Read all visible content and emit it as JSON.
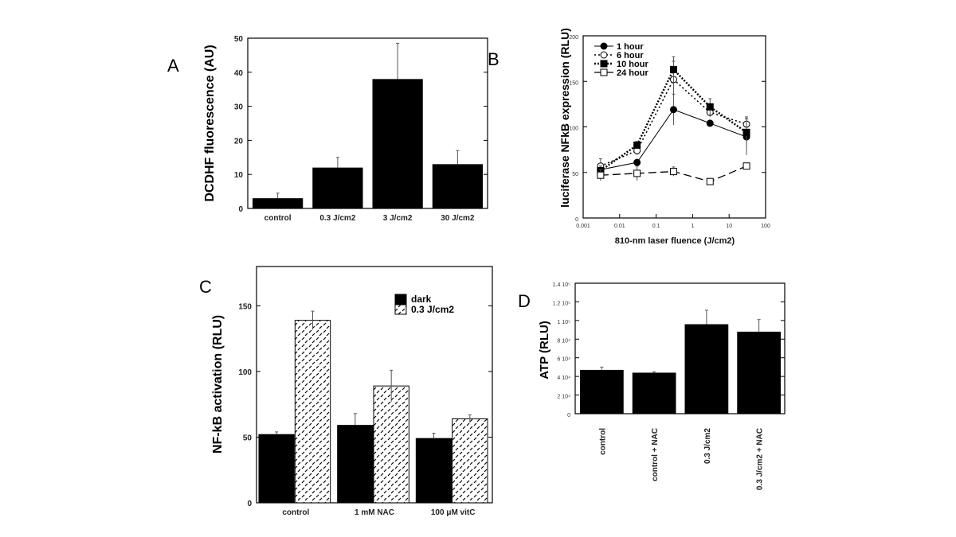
{
  "chart_data": [
    {
      "panel": "A",
      "type": "bar",
      "ylabel": "DCDHF fluorescence (AU)",
      "ylim": [
        0,
        50
      ],
      "yticks": [
        0,
        10,
        20,
        30,
        40,
        50
      ],
      "categories": [
        "control",
        "0.3 J/cm2",
        "3 J/cm2",
        "30 J/cm2"
      ],
      "values": [
        3,
        12,
        38,
        13
      ],
      "errors": [
        1.5,
        3,
        10.5,
        4
      ],
      "bar_color": "#000000"
    },
    {
      "panel": "B",
      "type": "line",
      "xscale": "log",
      "xlabel": "810-nm laser fluence (J/cm2)",
      "ylabel": "luciferase NFkB expression (RLU)",
      "xlim": [
        0.001,
        100
      ],
      "ylim": [
        0,
        200
      ],
      "xticks": [
        "0.001",
        "0.01",
        "0.1",
        "1",
        "10",
        "100"
      ],
      "yticks": [
        0,
        50,
        100,
        150,
        200
      ],
      "legend_position": "top-left",
      "x": [
        0.003,
        0.03,
        0.3,
        3,
        30
      ],
      "series": [
        {
          "name": "1 hour",
          "values": [
            53,
            61,
            119,
            104,
            89
          ],
          "errors": [
            5,
            3,
            17,
            2,
            20
          ],
          "marker": "filled-circle",
          "line": "solid"
        },
        {
          "name": "6 hour",
          "values": [
            57,
            74,
            152,
            116,
            103
          ],
          "errors": [
            8,
            5,
            20,
            5,
            8
          ],
          "marker": "open-circle",
          "line": "dotted"
        },
        {
          "name": "10 hour",
          "values": [
            52,
            80,
            163,
            122,
            94
          ],
          "errors": [
            5,
            4,
            14,
            9,
            15
          ],
          "marker": "filled-square",
          "line": "dotted-heavy"
        },
        {
          "name": "24 hour",
          "values": [
            47,
            49,
            51,
            40,
            57
          ],
          "errors": [
            6,
            8,
            5,
            2,
            2
          ],
          "marker": "open-square",
          "line": "dashed"
        }
      ]
    },
    {
      "panel": "C",
      "type": "bar",
      "ylabel": "NF-kB activation (RLU)",
      "ylim": [
        0,
        180
      ],
      "yticks": [
        0,
        50,
        100,
        150
      ],
      "legend_position": "top-right",
      "categories": [
        "control",
        "1 mM NAC",
        "100 μM vitC"
      ],
      "series": [
        {
          "name": "dark",
          "values": [
            52,
            59,
            49
          ],
          "errors": [
            2,
            9,
            4
          ],
          "fill": "solid-black"
        },
        {
          "name": "0.3 J/cm2",
          "values": [
            139,
            89,
            64
          ],
          "errors": [
            7,
            12,
            3
          ],
          "fill": "hatched"
        }
      ]
    },
    {
      "panel": "D",
      "type": "bar",
      "ylabel": "ATP (RLU)",
      "ylim": [
        0,
        140000
      ],
      "yticks": [
        0,
        20000,
        40000,
        60000,
        80000,
        100000,
        120000,
        140000
      ],
      "ytick_labels": [
        "0",
        "2 10⁴",
        "4 10⁴",
        "6 10⁴",
        "8 10⁴",
        "1 10⁵",
        "1.2 10⁵",
        "1.4 10⁵"
      ],
      "categories": [
        "control",
        "control + NAC",
        "0.3 J/cm2",
        "0.3 J/cm2 + NAC"
      ],
      "values": [
        47000,
        44000,
        96000,
        88000
      ],
      "errors": [
        3000,
        1000,
        15000,
        13000
      ],
      "bar_color": "#000000"
    }
  ]
}
